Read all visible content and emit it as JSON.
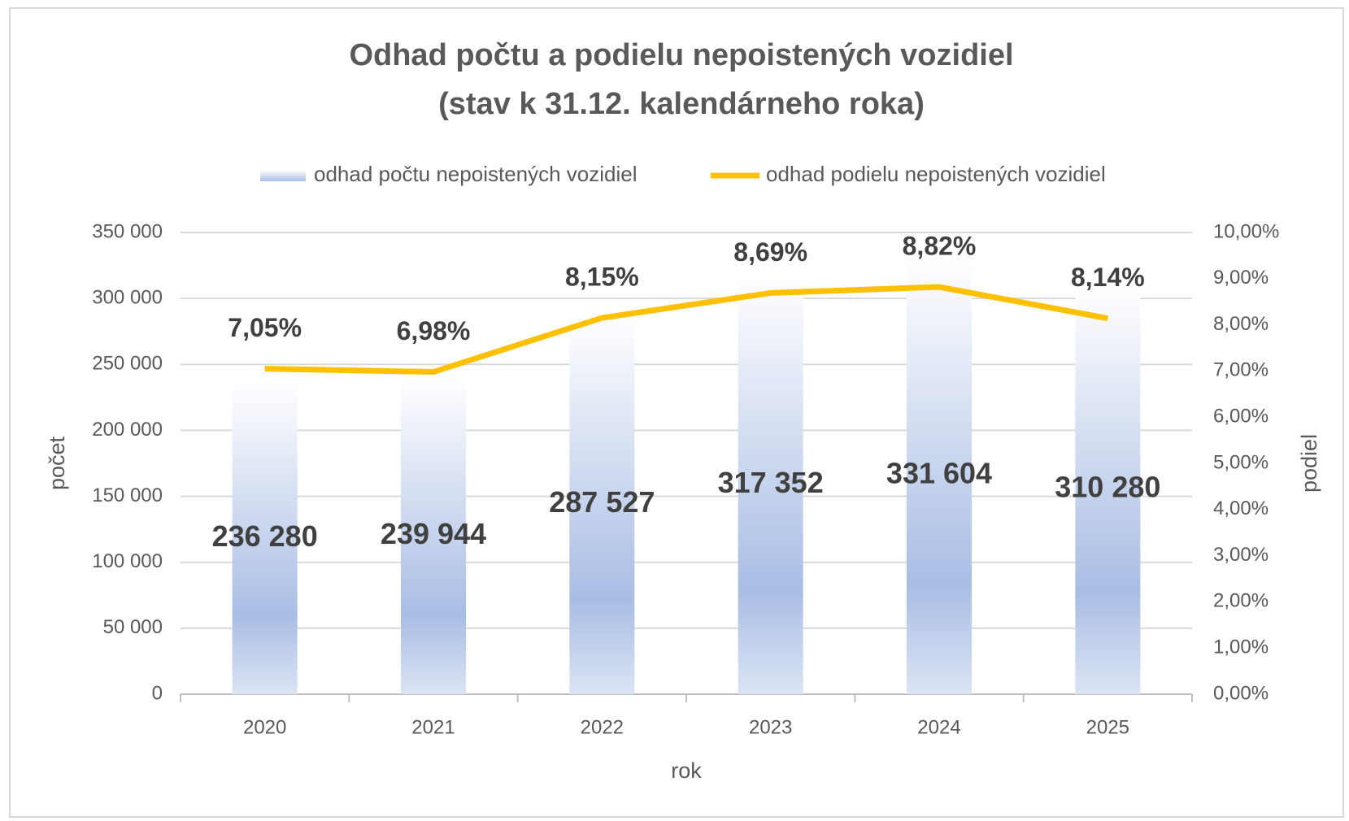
{
  "chart_data": {
    "type": "bar_line",
    "title": "Odhad počtu a podielu nepoistených vozidiel",
    "subtitle": "(stav k 31.12. kalendárneho roka)",
    "x_label": "rok",
    "y_label": "počet",
    "y2_label": "podiel",
    "categories": [
      "2020",
      "2021",
      "2022",
      "2023",
      "2024",
      "2025"
    ],
    "series": [
      {
        "name": "odhad počtu nepoistených vozidiel",
        "type": "bar",
        "color": "#a9bde4",
        "values": [
          236280,
          239944,
          287527,
          317352,
          331604,
          310280
        ],
        "value_labels": [
          "236 280",
          "239 944",
          "287 527",
          "317 352",
          "331 604",
          "310 280"
        ]
      },
      {
        "name": "odhad podielu nepoistených vozidiel",
        "type": "line",
        "axis": "y2",
        "color": "#ffc000",
        "values": [
          7.05,
          6.98,
          8.15,
          8.69,
          8.82,
          8.14
        ],
        "value_labels": [
          "7,05%",
          "6,98%",
          "8,15%",
          "8,69%",
          "8,82%",
          "8,14%"
        ]
      }
    ],
    "ylim": [
      0,
      350000
    ],
    "yticks": [
      0,
      {
        "value": 50000,
        "label": "50 000"
      },
      {
        "value": 100000,
        "label": "100 000"
      },
      {
        "value": 150000,
        "label": "150 000"
      },
      {
        "value": 200000,
        "label": "200 000"
      },
      {
        "value": 250000,
        "label": "250 000"
      },
      {
        "value": 300000,
        "label": "300 000"
      },
      {
        "value": 350000,
        "label": "350 000"
      }
    ],
    "y2lim": [
      0,
      10
    ],
    "y2ticks": [
      {
        "value": 0,
        "label": "0,00%"
      },
      {
        "value": 1,
        "label": "1,00%"
      },
      {
        "value": 2,
        "label": "2,00%"
      },
      {
        "value": 3,
        "label": "3,00%"
      },
      {
        "value": 4,
        "label": "4,00%"
      },
      {
        "value": 5,
        "label": "5,00%"
      },
      {
        "value": 6,
        "label": "6,00%"
      },
      {
        "value": 7,
        "label": "7,00%"
      },
      {
        "value": 8,
        "label": "8,00%"
      },
      {
        "value": 9,
        "label": "9,00%"
      },
      {
        "value": 10,
        "label": "10,00%"
      }
    ],
    "grid": true,
    "legend": "top"
  }
}
